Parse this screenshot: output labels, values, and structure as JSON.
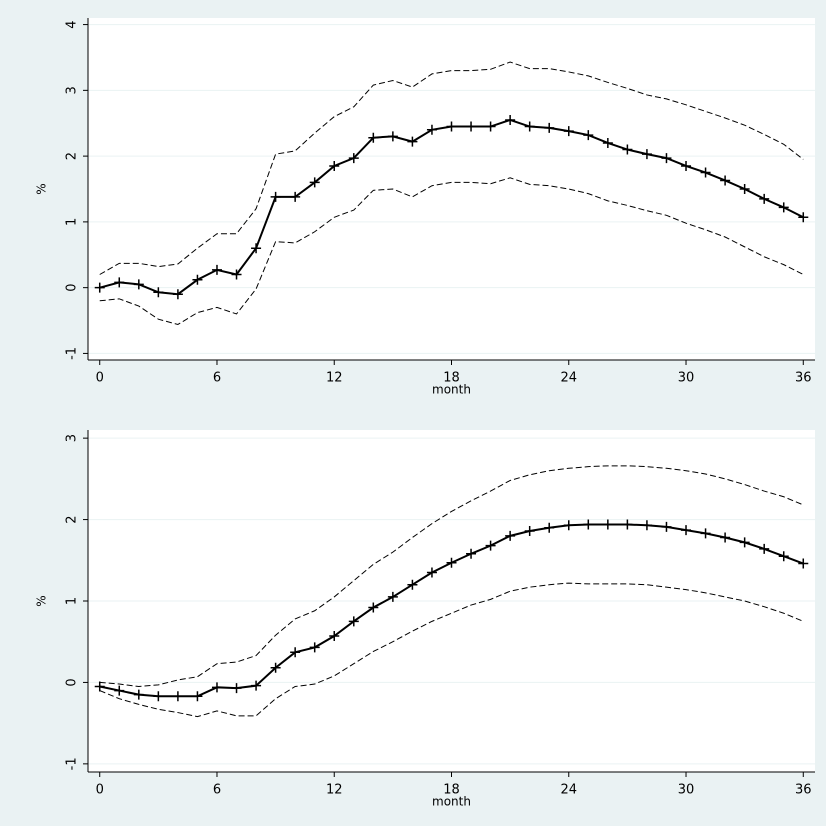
{
  "chart_data": [
    {
      "type": "line",
      "x_label": "month",
      "y_label": "%",
      "x": [
        0,
        1,
        2,
        3,
        4,
        5,
        6,
        7,
        8,
        9,
        10,
        11,
        12,
        13,
        14,
        15,
        16,
        17,
        18,
        19,
        20,
        21,
        22,
        23,
        24,
        25,
        26,
        27,
        28,
        29,
        30,
        31,
        32,
        33,
        34,
        35,
        36
      ],
      "xlim": [
        -0.6,
        36.6
      ],
      "xticks": [
        0,
        6,
        12,
        18,
        24,
        30,
        36
      ],
      "ylim": [
        -1.1,
        4.1
      ],
      "yticks": [
        -1,
        0,
        1,
        2,
        3,
        4
      ],
      "grid": true,
      "series": [
        {
          "color": "#000000",
          "marker": "+",
          "dash": false,
          "values": [
            0,
            0.08,
            0.05,
            -0.07,
            -0.1,
            0.12,
            0.27,
            0.2,
            0.6,
            1.38,
            1.38,
            1.6,
            1.85,
            1.97,
            2.28,
            2.3,
            2.22,
            2.4,
            2.45,
            2.45,
            2.45,
            2.55,
            2.45,
            2.43,
            2.38,
            2.32,
            2.2,
            2.1,
            2.03,
            1.97,
            1.85,
            1.75,
            1.63,
            1.5,
            1.35,
            1.22,
            1.07
          ]
        },
        {
          "color": "#000000",
          "dash": true,
          "values": [
            0.2,
            0.37,
            0.37,
            0.32,
            0.36,
            0.6,
            0.82,
            0.82,
            1.2,
            2.03,
            2.08,
            2.35,
            2.6,
            2.75,
            3.08,
            3.15,
            3.05,
            3.25,
            3.3,
            3.3,
            3.32,
            3.43,
            3.33,
            3.33,
            3.28,
            3.22,
            3.12,
            3.03,
            2.93,
            2.87,
            2.78,
            2.68,
            2.58,
            2.47,
            2.33,
            2.18,
            1.95
          ]
        },
        {
          "color": "#000000",
          "dash": true,
          "values": [
            -0.2,
            -0.17,
            -0.28,
            -0.48,
            -0.56,
            -0.38,
            -0.3,
            -0.4,
            -0.02,
            0.7,
            0.68,
            0.85,
            1.07,
            1.18,
            1.48,
            1.5,
            1.38,
            1.55,
            1.6,
            1.6,
            1.58,
            1.67,
            1.57,
            1.55,
            1.5,
            1.43,
            1.32,
            1.25,
            1.17,
            1.1,
            0.98,
            0.88,
            0.77,
            0.62,
            0.47,
            0.35,
            0.2
          ]
        }
      ]
    },
    {
      "type": "line",
      "x_label": "month",
      "y_label": "%",
      "x": [
        0,
        1,
        2,
        3,
        4,
        5,
        6,
        7,
        8,
        9,
        10,
        11,
        12,
        13,
        14,
        15,
        16,
        17,
        18,
        19,
        20,
        21,
        22,
        23,
        24,
        25,
        26,
        27,
        28,
        29,
        30,
        31,
        32,
        33,
        34,
        35,
        36
      ],
      "xlim": [
        -0.6,
        36.6
      ],
      "xticks": [
        0,
        6,
        12,
        18,
        24,
        30,
        36
      ],
      "ylim": [
        -1.1,
        3.1
      ],
      "yticks": [
        -1,
        0,
        1,
        2,
        3
      ],
      "grid": true,
      "series": [
        {
          "color": "#000000",
          "marker": "+",
          "dash": false,
          "values": [
            -0.05,
            -0.1,
            -0.15,
            -0.17,
            -0.17,
            -0.17,
            -0.06,
            -0.07,
            -0.04,
            0.18,
            0.37,
            0.43,
            0.57,
            0.75,
            0.92,
            1.05,
            1.2,
            1.35,
            1.47,
            1.58,
            1.68,
            1.8,
            1.86,
            1.9,
            1.93,
            1.94,
            1.94,
            1.94,
            1.93,
            1.91,
            1.87,
            1.83,
            1.78,
            1.72,
            1.64,
            1.55,
            1.46
          ]
        },
        {
          "color": "#000000",
          "dash": true,
          "values": [
            0,
            -0.02,
            -0.05,
            -0.03,
            0.03,
            0.07,
            0.23,
            0.25,
            0.33,
            0.58,
            0.78,
            0.88,
            1.05,
            1.25,
            1.45,
            1.6,
            1.78,
            1.95,
            2.1,
            2.23,
            2.35,
            2.48,
            2.55,
            2.6,
            2.63,
            2.65,
            2.66,
            2.66,
            2.65,
            2.63,
            2.6,
            2.56,
            2.5,
            2.43,
            2.35,
            2.28,
            2.18
          ]
        },
        {
          "color": "#000000",
          "dash": true,
          "values": [
            -0.1,
            -0.2,
            -0.27,
            -0.33,
            -0.37,
            -0.42,
            -0.35,
            -0.41,
            -0.41,
            -0.2,
            -0.05,
            -0.02,
            0.08,
            0.23,
            0.38,
            0.5,
            0.63,
            0.75,
            0.85,
            0.95,
            1.02,
            1.12,
            1.17,
            1.2,
            1.22,
            1.21,
            1.21,
            1.21,
            1.2,
            1.17,
            1.14,
            1.1,
            1.05,
            1.0,
            0.93,
            0.85,
            0.75
          ]
        }
      ]
    }
  ]
}
